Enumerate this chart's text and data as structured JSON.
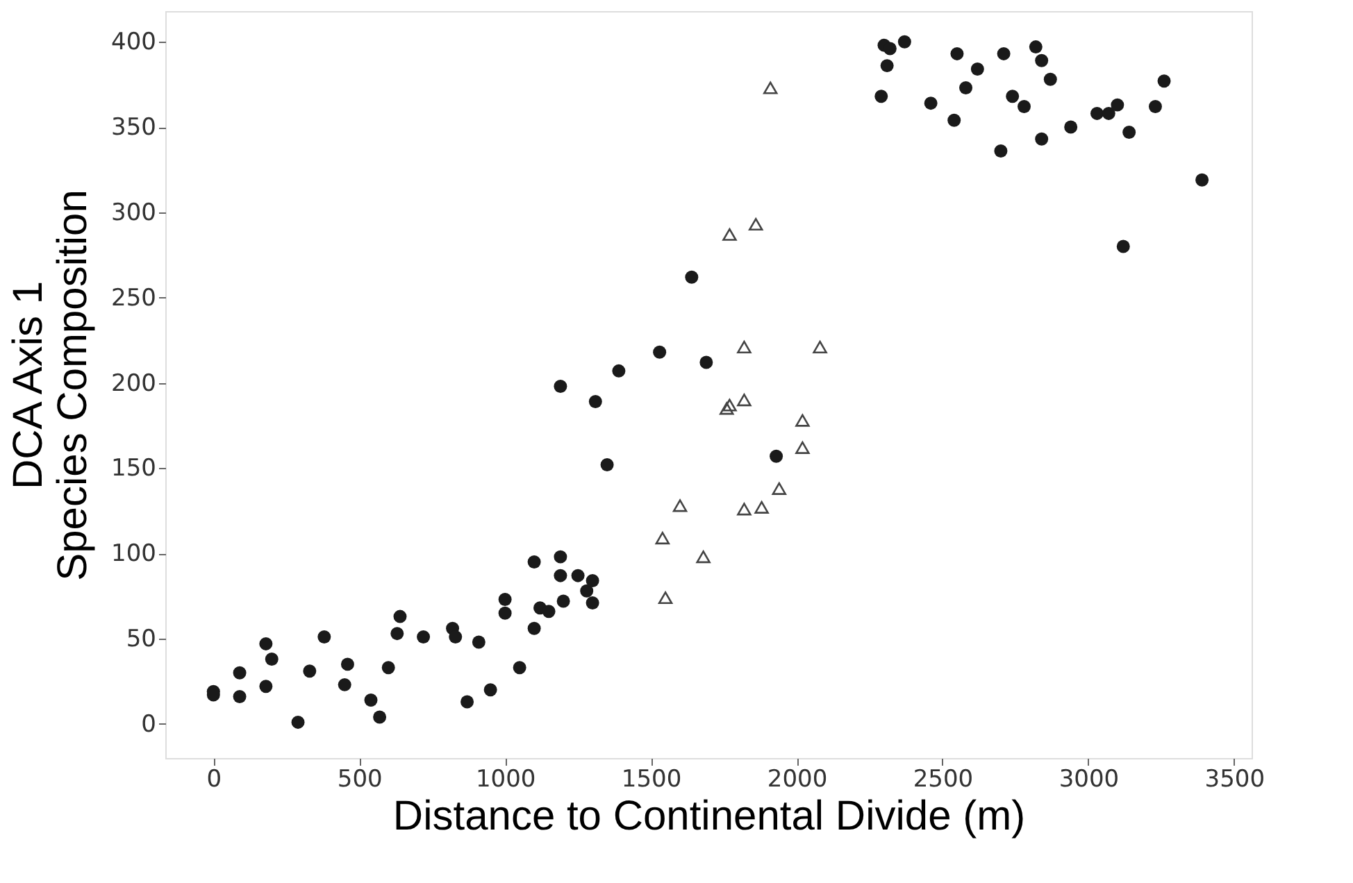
{
  "chart_data": {
    "type": "scatter",
    "xlabel": "Distance to Continental Divide (m)",
    "ylabel": "DCA Axis 1\nSpecies Composition",
    "xlim": [
      -165,
      3560
    ],
    "ylim": [
      -20,
      418
    ],
    "xticks": [
      0,
      500,
      1000,
      1500,
      2000,
      2500,
      3000,
      3500
    ],
    "yticks": [
      0,
      50,
      100,
      150,
      200,
      250,
      300,
      350,
      400
    ],
    "grid": false,
    "series": [
      {
        "color": "#1a1a1a",
        "marker": "circle",
        "x": [
          0,
          0,
          90,
          90,
          180,
          180,
          200,
          290,
          330,
          380,
          450,
          460,
          540,
          570,
          600,
          630,
          640,
          720,
          820,
          830,
          870,
          910,
          950,
          1000,
          1000,
          1050,
          1100,
          1100,
          1120,
          1150,
          1190,
          1190,
          1200,
          1250,
          1280,
          1300,
          1300,
          1190,
          1310,
          1350,
          1390,
          1530,
          1640,
          1690,
          1930,
          2290,
          2300,
          2310,
          2320,
          2370,
          2460,
          2540,
          2550,
          2580,
          2620,
          2700,
          2710,
          2740,
          2780,
          2820,
          2840,
          2840,
          2870,
          2940,
          3030,
          3070,
          3100,
          3120,
          3140,
          3230,
          3260,
          3390
        ],
        "values": [
          17,
          19,
          16,
          30,
          22,
          47,
          38,
          1,
          31,
          51,
          23,
          35,
          14,
          4,
          33,
          53,
          63,
          51,
          56,
          51,
          13,
          48,
          20,
          65,
          73,
          33,
          95,
          56,
          68,
          66,
          98,
          87,
          72,
          87,
          78,
          71,
          84,
          198,
          189,
          152,
          207,
          218,
          262,
          212,
          157,
          368,
          398,
          386,
          396,
          400,
          364,
          354,
          393,
          373,
          384,
          336,
          393,
          368,
          362,
          397,
          389,
          343,
          378,
          350,
          358,
          358,
          363,
          280,
          347,
          362,
          377,
          319
        ]
      },
      {
        "color": "#444444",
        "marker": "triangle",
        "x": [
          1910,
          1770,
          1860,
          1820,
          2080,
          1760,
          1770,
          1820,
          2020,
          2020,
          1940,
          1600,
          1820,
          1880,
          1540,
          1680,
          1550
        ],
        "values": [
          373,
          287,
          293,
          221,
          221,
          185,
          187,
          190,
          178,
          162,
          138,
          128,
          126,
          127,
          109,
          98,
          74
        ]
      }
    ]
  }
}
